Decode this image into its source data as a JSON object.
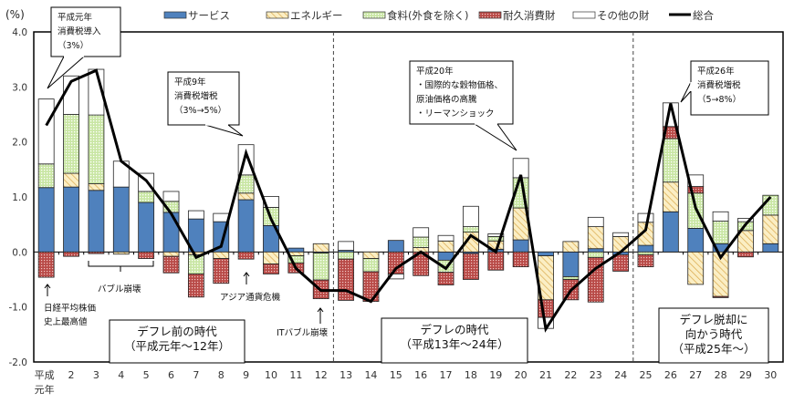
{
  "chart_data": {
    "type": "bar",
    "stacked": true,
    "ylabel": "(%)",
    "ylim": [
      -2.0,
      4.0
    ],
    "yticks": [
      "4.0",
      "3.0",
      "2.0",
      "1.0",
      "0.0",
      "-1.0",
      "-2.0"
    ],
    "grid": false,
    "legend_position": "top",
    "categories": [
      "平成元年",
      "2",
      "3",
      "4",
      "5",
      "6",
      "7",
      "8",
      "9",
      "10",
      "11",
      "12",
      "13",
      "14",
      "15",
      "16",
      "17",
      "18",
      "19",
      "20",
      "21",
      "22",
      "23",
      "24",
      "25",
      "26",
      "27",
      "28",
      "29",
      "30"
    ],
    "series": [
      {
        "name": "サービス",
        "color": "#4f81bd",
        "pattern": "solid",
        "values": [
          1.17,
          1.18,
          1.12,
          1.18,
          0.9,
          0.72,
          0.6,
          0.55,
          0.95,
          0.48,
          0.07,
          -0.02,
          0.03,
          0,
          0.21,
          0,
          -0.15,
          -0.03,
          0.05,
          0.22,
          -0.07,
          -0.45,
          0.06,
          -0.05,
          0.12,
          0.73,
          0.43,
          0.15,
          0,
          0.15
        ]
      },
      {
        "name": "エネルギー",
        "color": "#f8e3a3",
        "pattern": "hatch",
        "values": [
          0,
          0.25,
          0.12,
          -0.04,
          0,
          -0.08,
          -0.05,
          -0.12,
          0.12,
          -0.22,
          -0.07,
          0.15,
          0,
          -0.12,
          0,
          0.08,
          0.2,
          0.36,
          0.15,
          0.58,
          -0.8,
          0.19,
          0.4,
          0.28,
          0.42,
          0.54,
          -0.59,
          -0.81,
          0.39,
          0.52
        ]
      },
      {
        "name": "食料(外食を除く)",
        "color": "#c3e29b",
        "pattern": "dots",
        "values": [
          0.43,
          1.07,
          1.25,
          0,
          0.2,
          0.2,
          -0.35,
          0,
          0.33,
          0.33,
          -0.13,
          -0.49,
          -0.13,
          -0.24,
          0,
          0.19,
          -0.22,
          0.1,
          0.08,
          0.55,
          0,
          -0.05,
          -0.1,
          0,
          -0.05,
          0.79,
          0.64,
          0.41,
          0.16,
          0.36
        ]
      },
      {
        "name": "耐久消費財",
        "color": "#c0504d",
        "pattern": "dots",
        "values": [
          -0.46,
          -0.08,
          -0.03,
          0,
          -0.12,
          -0.3,
          -0.42,
          -0.45,
          -0.13,
          -0.18,
          -0.18,
          -0.34,
          -0.75,
          -0.54,
          -0.4,
          -0.43,
          -0.23,
          -0.47,
          -0.33,
          -0.27,
          -0.32,
          -0.37,
          -0.81,
          -0.3,
          -0.22,
          0.22,
          0.12,
          -0.02,
          -0.09,
          0
        ]
      },
      {
        "name": "その他の財",
        "color": "#ffffff",
        "pattern": "solid",
        "values": [
          1.18,
          0.7,
          0.83,
          0.47,
          0.33,
          0.18,
          0.15,
          0.15,
          0.55,
          0.2,
          0,
          0,
          0.16,
          0,
          -0.09,
          0.17,
          0.1,
          0.37,
          0.05,
          0.35,
          -0.2,
          0,
          0.17,
          0.07,
          0.16,
          0.43,
          0.21,
          0.17,
          0.06,
          0
        ]
      },
      {
        "name": "総合",
        "color": "#000000",
        "type": "line",
        "values": [
          2.3,
          3.1,
          3.3,
          1.65,
          1.3,
          0.7,
          -0.1,
          0.1,
          1.8,
          0.6,
          -0.3,
          -0.7,
          -0.7,
          -0.9,
          -0.3,
          0.0,
          -0.3,
          0.3,
          0.0,
          1.4,
          -1.4,
          -0.7,
          -0.3,
          0.0,
          0.4,
          2.7,
          0.8,
          -0.1,
          0.5,
          1.0
        ]
      }
    ],
    "annotations": {
      "callouts": [
        {
          "lines": [
            "平成元年",
            "消費税導入",
            "（3%）"
          ]
        },
        {
          "lines": [
            "平成9年",
            "消費税増税",
            "（3%→5%）"
          ]
        },
        {
          "lines": [
            "平成20年",
            "・国際的な穀物価格、",
            "原油価格の高騰",
            "・リーマンショック"
          ]
        },
        {
          "lines": [
            "平成26年",
            "消費税増税",
            "（5→8%）"
          ]
        }
      ],
      "notes": [
        {
          "lines": [
            "日経平均株価",
            "史上最高値"
          ]
        },
        {
          "lines": [
            "バブル崩壊"
          ]
        },
        {
          "lines": [
            "アジア通貨危機"
          ]
        },
        {
          "lines": [
            "ITバブル崩壊"
          ]
        }
      ],
      "eras": [
        {
          "lines": [
            "デフレ前の時代",
            "（平成元年～12年）"
          ]
        },
        {
          "lines": [
            "デフレの時代",
            "（平成13年～24年）"
          ]
        },
        {
          "lines": [
            "デフレ脱却に",
            "向かう時代",
            "（平成25年～）"
          ]
        }
      ]
    }
  }
}
